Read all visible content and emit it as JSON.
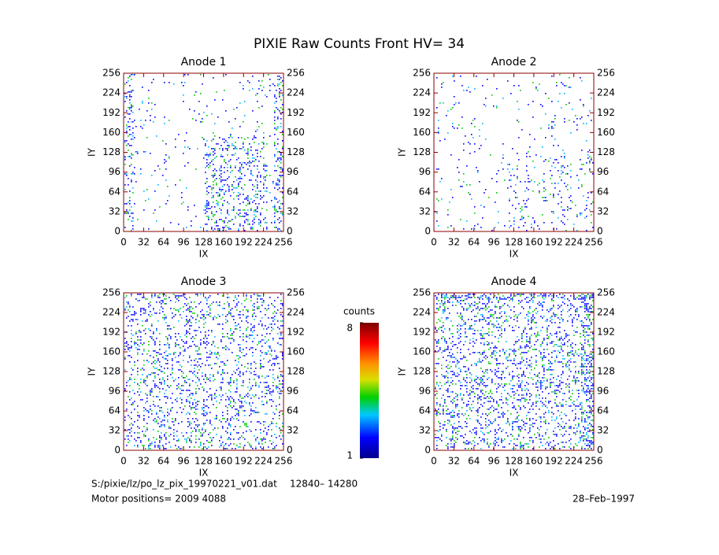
{
  "title": "PIXIE Raw Counts Front HV= 34",
  "chart_data": [
    {
      "type": "heatmap",
      "title": "Anode 1",
      "x_label": "IX",
      "y_label": "IY",
      "xlim": [
        0,
        256
      ],
      "ylim": [
        0,
        256
      ],
      "xticks": [
        0,
        32,
        64,
        96,
        128,
        160,
        192,
        224,
        256
      ],
      "yticks": [
        0,
        32,
        64,
        96,
        128,
        160,
        192,
        224,
        256
      ]
    },
    {
      "type": "heatmap",
      "title": "Anode 2",
      "x_label": "IX",
      "y_label": "IY",
      "xlim": [
        0,
        256
      ],
      "ylim": [
        0,
        256
      ],
      "xticks": [
        0,
        32,
        64,
        96,
        128,
        160,
        192,
        224,
        256
      ],
      "yticks": [
        0,
        32,
        64,
        96,
        128,
        160,
        192,
        224,
        256
      ]
    },
    {
      "type": "heatmap",
      "title": "Anode 3",
      "x_label": "IX",
      "y_label": "IY",
      "xlim": [
        0,
        256
      ],
      "ylim": [
        0,
        256
      ],
      "xticks": [
        0,
        32,
        64,
        96,
        128,
        160,
        192,
        224,
        256
      ],
      "yticks": [
        0,
        32,
        64,
        96,
        128,
        160,
        192,
        224,
        256
      ]
    },
    {
      "type": "heatmap",
      "title": "Anode 4",
      "x_label": "IX",
      "y_label": "IY",
      "xlim": [
        0,
        256
      ],
      "ylim": [
        0,
        256
      ],
      "xticks": [
        0,
        32,
        64,
        96,
        128,
        160,
        192,
        224,
        256
      ],
      "yticks": [
        0,
        32,
        64,
        96,
        128,
        160,
        192,
        224,
        256
      ]
    }
  ],
  "colorbar": {
    "label": "counts",
    "lim": [
      1,
      8
    ],
    "ticks": [
      1,
      8
    ]
  },
  "footer": {
    "file": "S:/pixie/lz/po_lz_pix_19970221_v01.dat",
    "range": "12840– 14280",
    "motor": "Motor positions= 2009 4088",
    "date": "28–Feb–1997"
  }
}
